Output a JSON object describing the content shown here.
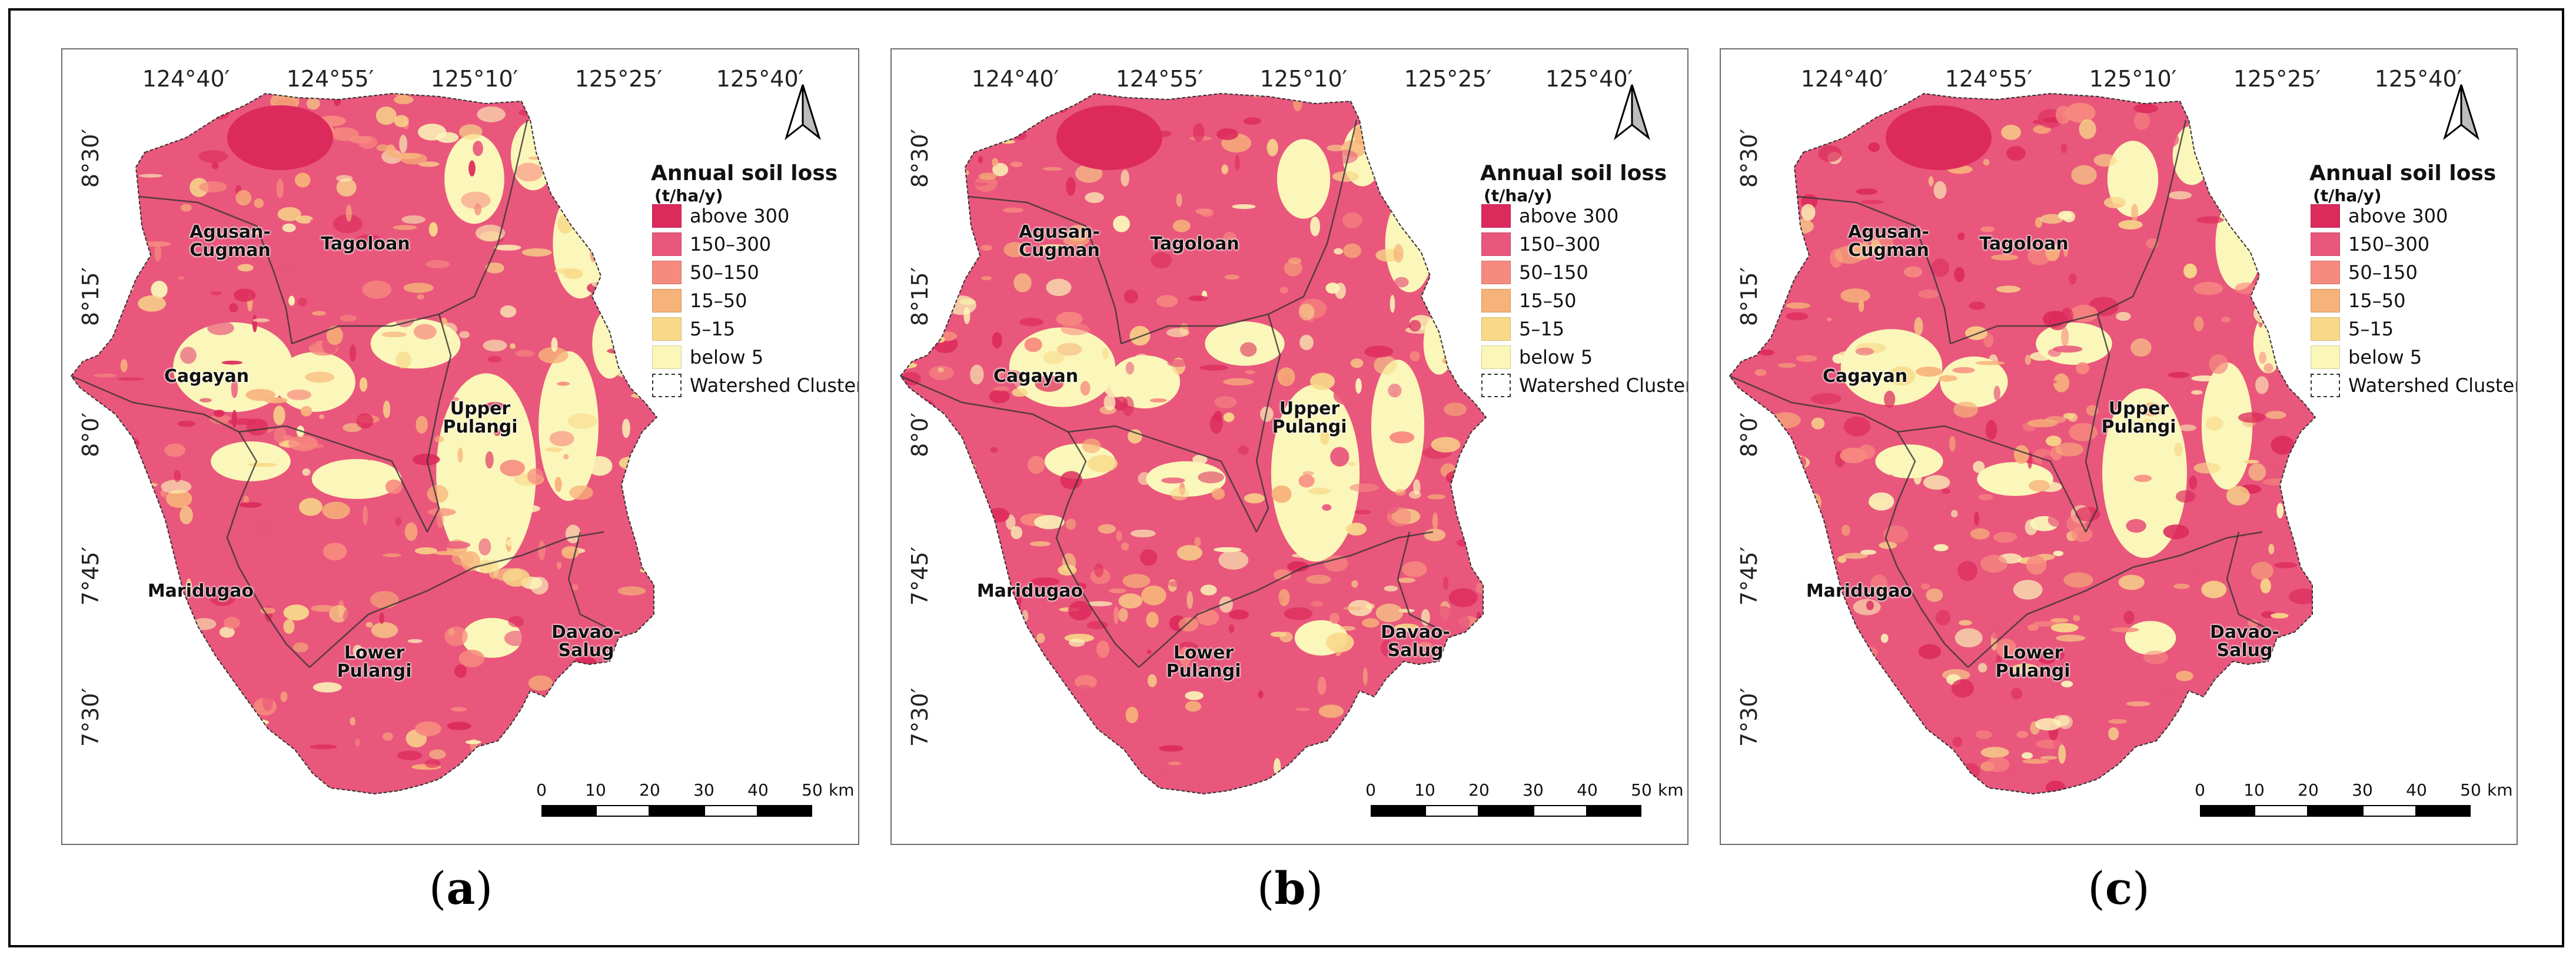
{
  "colors": {
    "above_300": "#dc2a5c",
    "r150_300": "#e9577c",
    "r50_150": "#f78a7f",
    "r15_50": "#f7b27a",
    "r5_15": "#f8d98a",
    "below_5": "#fbf6b9",
    "boundary": "#333333",
    "frame": "#000000"
  },
  "longitude_ticks": [
    "124°40′",
    "124°55′",
    "125°10′",
    "125°25′",
    "125°40′"
  ],
  "latitude_ticks": [
    "8°30′",
    "8°15′",
    "8°0′",
    "7°45′",
    "7°30′"
  ],
  "legend": {
    "title": "Annual soil loss",
    "unit": "(t/ha/y)",
    "items": [
      {
        "label": "above 300",
        "color_key": "above_300"
      },
      {
        "label": "150–300",
        "color_key": "r150_300"
      },
      {
        "label": "50–150",
        "color_key": "r50_150"
      },
      {
        "label": "15–50",
        "color_key": "r15_50"
      },
      {
        "label": "5–15",
        "color_key": "r5_15"
      },
      {
        "label": "below 5",
        "color_key": "below_5"
      },
      {
        "label": "Watershed Cluster",
        "color_key": "boundary"
      }
    ]
  },
  "regions": [
    {
      "line1": "Agusan-",
      "line2": "Cugman"
    },
    {
      "line1": "Tagoloan",
      "line2": ""
    },
    {
      "line1": "Cagayan",
      "line2": ""
    },
    {
      "line1": "Upper",
      "line2": "Pulangi"
    },
    {
      "line1": "Maridugao",
      "line2": ""
    },
    {
      "line1": "Lower",
      "line2": "Pulangi"
    },
    {
      "line1": "Davao-",
      "line2": "Salug"
    }
  ],
  "scale": {
    "ticks": [
      "0",
      "10",
      "20",
      "30",
      "40",
      "50"
    ],
    "unit": "km"
  },
  "panels": [
    {
      "label": "a",
      "open": "(",
      "close": ")",
      "red_density": 0.72
    },
    {
      "label": "b",
      "open": "(",
      "close": ")",
      "red_density": 0.78
    },
    {
      "label": "c",
      "open": "(",
      "close": ")",
      "red_density": 0.8
    }
  ],
  "north_arrow": {
    "icon": "north-arrow-icon"
  }
}
